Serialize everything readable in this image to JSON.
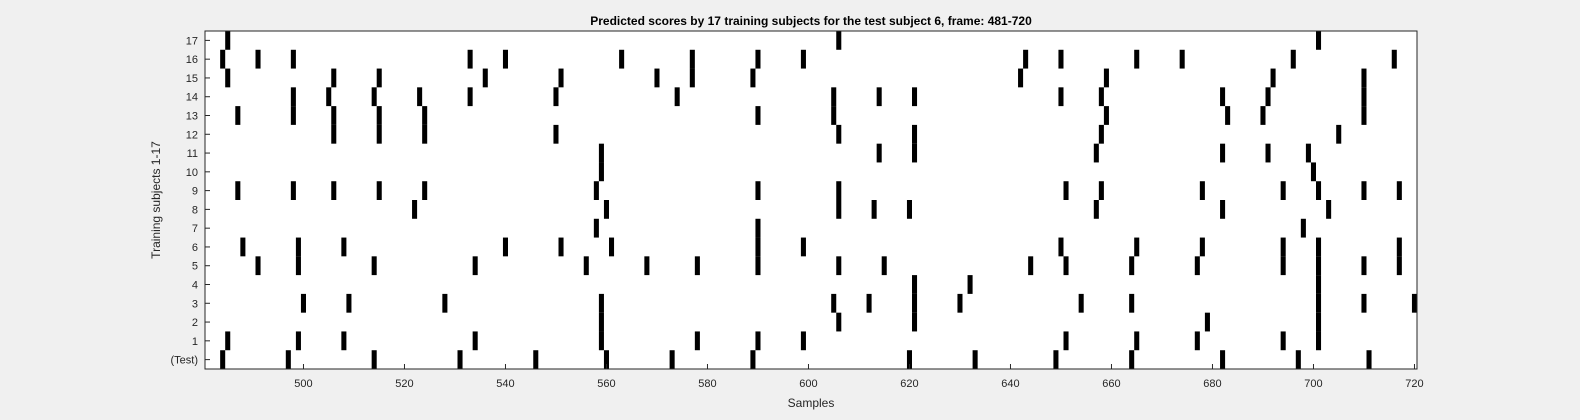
{
  "chart_data": {
    "type": "heatmap",
    "title": "Predicted scores by 17 training subjects for the test subject 6, frame: 481-720",
    "xlabel": "Samples",
    "ylabel": "Training subjects 1-17",
    "xlim": [
      481,
      720
    ],
    "xticks": [
      500,
      520,
      540,
      560,
      580,
      600,
      620,
      640,
      660,
      680,
      700,
      720
    ],
    "rows": [
      "(Test)",
      "1",
      "2",
      "3",
      "4",
      "5",
      "6",
      "7",
      "8",
      "9",
      "10",
      "11",
      "12",
      "13",
      "14",
      "15",
      "16",
      "17"
    ],
    "colors": {
      "mark": "#000000",
      "plot_bg": "#ffffff",
      "figure_bg": "#f0f0f0",
      "axis": "#262626"
    },
    "events": [
      {
        "row": "(Test)",
        "x": [
          484,
          497,
          514,
          531,
          546,
          560,
          573,
          589,
          620,
          633,
          649,
          664,
          682,
          697,
          711
        ]
      },
      {
        "row": "1",
        "x": [
          485,
          499,
          508,
          534,
          559,
          578,
          590,
          599,
          651,
          665,
          677,
          694,
          701
        ]
      },
      {
        "row": "2",
        "x": [
          559,
          606,
          621,
          679,
          701
        ]
      },
      {
        "row": "3",
        "x": [
          500,
          509,
          528,
          559,
          605,
          612,
          621,
          630,
          654,
          664,
          701,
          710,
          720
        ]
      },
      {
        "row": "4",
        "x": [
          621,
          632,
          701
        ]
      },
      {
        "row": "5",
        "x": [
          491,
          499,
          514,
          534,
          556,
          568,
          578,
          590,
          606,
          615,
          644,
          651,
          664,
          677,
          694,
          701,
          710,
          717
        ]
      },
      {
        "row": "6",
        "x": [
          488,
          499,
          508,
          540,
          551,
          561,
          590,
          599,
          650,
          665,
          678,
          694,
          701,
          717
        ]
      },
      {
        "row": "7",
        "x": [
          558,
          590,
          698
        ]
      },
      {
        "row": "8",
        "x": [
          522,
          560,
          606,
          613,
          620,
          657,
          682,
          703
        ]
      },
      {
        "row": "9",
        "x": [
          487,
          498,
          506,
          515,
          524,
          558,
          590,
          606,
          651,
          658,
          678,
          694,
          701,
          710,
          717
        ]
      },
      {
        "row": "10",
        "x": [
          559,
          700
        ]
      },
      {
        "row": "11",
        "x": [
          559,
          614,
          621,
          657,
          682,
          691,
          699
        ]
      },
      {
        "row": "12",
        "x": [
          506,
          515,
          524,
          550,
          606,
          621,
          658,
          705
        ]
      },
      {
        "row": "13",
        "x": [
          487,
          498,
          506,
          515,
          524,
          590,
          605,
          659,
          683,
          690,
          710
        ]
      },
      {
        "row": "14",
        "x": [
          498,
          505,
          514,
          523,
          533,
          550,
          574,
          605,
          614,
          621,
          650,
          658,
          682,
          691,
          710
        ]
      },
      {
        "row": "15",
        "x": [
          485,
          506,
          515,
          536,
          551,
          570,
          577,
          589,
          642,
          659,
          692,
          710
        ]
      },
      {
        "row": "16",
        "x": [
          484,
          491,
          498,
          533,
          540,
          563,
          577,
          590,
          599,
          643,
          650,
          665,
          674,
          696,
          716
        ]
      },
      {
        "row": "17",
        "x": [
          485,
          606,
          701
        ]
      }
    ]
  }
}
